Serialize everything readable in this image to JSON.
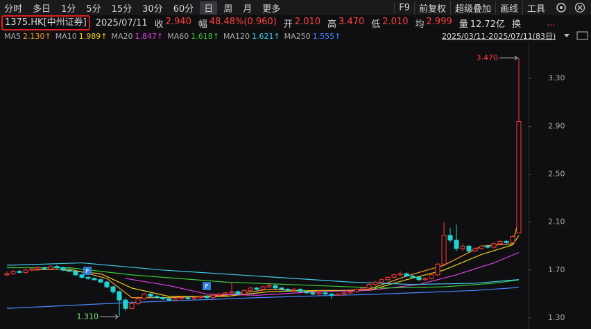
{
  "toolbar": {
    "left": [
      "分时",
      "多日",
      "1分",
      "5分",
      "15分",
      "30分",
      "60分",
      "日",
      "周",
      "月",
      "更多"
    ],
    "selected_index": 7,
    "right": [
      "F9",
      "前复权",
      "超级叠加",
      "画线",
      "工具"
    ]
  },
  "quote": {
    "symbol": "1375.HK[中州证券]",
    "date": "2025/07/11",
    "fields": [
      {
        "label": "收",
        "value": "2.940"
      },
      {
        "label": "幅",
        "value": "48.48%(0.960)"
      },
      {
        "label": "开",
        "value": "2.010"
      },
      {
        "label": "高",
        "value": "3.470"
      },
      {
        "label": "低",
        "value": "2.010"
      },
      {
        "label": "均",
        "value": "2.999"
      },
      {
        "label": "量",
        "value": "12.72亿"
      },
      {
        "label": "换",
        "value": null
      }
    ],
    "more": "..."
  },
  "chart_data": {
    "type": "candlestick",
    "date_range": "2025/03/11-2025/07/11(83日)",
    "up_color": "#ff3b3b",
    "down_color": "#22d3d3",
    "ylim": [
      1.24,
      3.59
    ],
    "yticks": [
      {
        "value": 1.3,
        "label": "1.30"
      },
      {
        "value": 1.7,
        "label": "1.70"
      },
      {
        "value": 2.1,
        "label": "2.10"
      },
      {
        "value": 2.5,
        "label": "2.50"
      },
      {
        "value": 2.9,
        "label": "2.90"
      },
      {
        "value": 3.3,
        "label": "3.30"
      }
    ],
    "candles": [
      [
        1.66,
        1.69,
        1.65,
        1.67
      ],
      [
        1.67,
        1.7,
        1.66,
        1.69
      ],
      [
        1.69,
        1.7,
        1.67,
        1.68
      ],
      [
        1.68,
        1.71,
        1.67,
        1.7
      ],
      [
        1.7,
        1.72,
        1.69,
        1.71
      ],
      [
        1.71,
        1.73,
        1.7,
        1.72
      ],
      [
        1.72,
        1.73,
        1.7,
        1.71
      ],
      [
        1.71,
        1.74,
        1.7,
        1.73
      ],
      [
        1.73,
        1.74,
        1.71,
        1.72
      ],
      [
        1.72,
        1.73,
        1.69,
        1.7
      ],
      [
        1.7,
        1.71,
        1.68,
        1.69
      ],
      [
        1.69,
        1.7,
        1.65,
        1.66
      ],
      [
        1.66,
        1.67,
        1.63,
        1.64
      ],
      [
        1.64,
        1.65,
        1.62,
        1.63
      ],
      [
        1.63,
        1.64,
        1.61,
        1.62
      ],
      [
        1.62,
        1.63,
        1.59,
        1.6
      ],
      [
        1.6,
        1.61,
        1.55,
        1.56
      ],
      [
        1.56,
        1.57,
        1.5,
        1.52
      ],
      [
        1.52,
        1.53,
        1.31,
        1.45
      ],
      [
        1.45,
        1.47,
        1.36,
        1.38
      ],
      [
        1.38,
        1.44,
        1.37,
        1.42
      ],
      [
        1.42,
        1.48,
        1.41,
        1.46
      ],
      [
        1.46,
        1.51,
        1.45,
        1.5
      ],
      [
        1.5,
        1.51,
        1.47,
        1.48
      ],
      [
        1.48,
        1.49,
        1.46,
        1.47
      ],
      [
        1.47,
        1.48,
        1.45,
        1.46
      ],
      [
        1.46,
        1.47,
        1.44,
        1.45
      ],
      [
        1.45,
        1.47,
        1.44,
        1.46
      ],
      [
        1.46,
        1.48,
        1.45,
        1.47
      ],
      [
        1.47,
        1.48,
        1.45,
        1.46
      ],
      [
        1.46,
        1.48,
        1.45,
        1.47
      ],
      [
        1.47,
        1.49,
        1.46,
        1.48
      ],
      [
        1.48,
        1.49,
        1.46,
        1.47
      ],
      [
        1.47,
        1.5,
        1.46,
        1.49
      ],
      [
        1.49,
        1.51,
        1.48,
        1.5
      ],
      [
        1.5,
        1.52,
        1.49,
        1.51
      ],
      [
        1.51,
        1.6,
        1.5,
        1.52
      ],
      [
        1.52,
        1.53,
        1.49,
        1.5
      ],
      [
        1.5,
        1.54,
        1.49,
        1.53
      ],
      [
        1.53,
        1.56,
        1.52,
        1.55
      ],
      [
        1.55,
        1.56,
        1.53,
        1.54
      ],
      [
        1.54,
        1.57,
        1.53,
        1.56
      ],
      [
        1.56,
        1.59,
        1.55,
        1.57
      ],
      [
        1.57,
        1.58,
        1.54,
        1.55
      ],
      [
        1.55,
        1.56,
        1.53,
        1.54
      ],
      [
        1.54,
        1.55,
        1.52,
        1.53
      ],
      [
        1.53,
        1.55,
        1.52,
        1.54
      ],
      [
        1.54,
        1.55,
        1.51,
        1.52
      ],
      [
        1.52,
        1.53,
        1.5,
        1.51
      ],
      [
        1.51,
        1.52,
        1.49,
        1.5
      ],
      [
        1.5,
        1.52,
        1.49,
        1.51
      ],
      [
        1.51,
        1.52,
        1.49,
        1.5
      ],
      [
        1.5,
        1.51,
        1.46,
        1.49
      ],
      [
        1.49,
        1.51,
        1.48,
        1.5
      ],
      [
        1.5,
        1.52,
        1.49,
        1.51
      ],
      [
        1.51,
        1.53,
        1.5,
        1.52
      ],
      [
        1.52,
        1.55,
        1.51,
        1.54
      ],
      [
        1.54,
        1.56,
        1.53,
        1.55
      ],
      [
        1.55,
        1.59,
        1.54,
        1.58
      ],
      [
        1.58,
        1.61,
        1.57,
        1.6
      ],
      [
        1.6,
        1.63,
        1.59,
        1.62
      ],
      [
        1.62,
        1.65,
        1.61,
        1.64
      ],
      [
        1.64,
        1.67,
        1.63,
        1.66
      ],
      [
        1.66,
        1.69,
        1.65,
        1.67
      ],
      [
        1.67,
        1.68,
        1.64,
        1.65
      ],
      [
        1.65,
        1.66,
        1.63,
        1.64
      ],
      [
        1.64,
        1.65,
        1.61,
        1.62
      ],
      [
        1.62,
        1.64,
        1.61,
        1.63
      ],
      [
        1.63,
        1.67,
        1.62,
        1.66
      ],
      [
        1.66,
        1.76,
        1.65,
        1.75
      ],
      [
        1.75,
        2.1,
        1.74,
        1.99
      ],
      [
        1.99,
        2.05,
        1.93,
        1.95
      ],
      [
        1.95,
        2.08,
        1.86,
        1.88
      ],
      [
        1.88,
        1.92,
        1.86,
        1.9
      ],
      [
        1.9,
        1.91,
        1.85,
        1.86
      ],
      [
        1.86,
        1.89,
        1.85,
        1.88
      ],
      [
        1.88,
        1.91,
        1.87,
        1.9
      ],
      [
        1.9,
        1.91,
        1.88,
        1.89
      ],
      [
        1.89,
        1.93,
        1.88,
        1.92
      ],
      [
        1.92,
        1.95,
        1.91,
        1.94
      ],
      [
        1.94,
        1.95,
        1.92,
        1.93
      ],
      [
        1.93,
        1.99,
        1.92,
        1.98
      ],
      [
        2.01,
        3.47,
        2.01,
        2.94
      ]
    ],
    "ma_lines": [
      {
        "name": "MA5",
        "color": "#f5a030",
        "value_label": "2.130↑",
        "x": [
          4,
          10,
          16,
          20,
          26,
          35,
          42,
          50,
          58,
          64,
          70,
          76,
          81,
          82
        ],
        "values": [
          1.7,
          1.71,
          1.63,
          1.47,
          1.47,
          1.49,
          1.54,
          1.52,
          1.54,
          1.65,
          1.74,
          1.9,
          1.92,
          2.13
        ]
      },
      {
        "name": "MA10",
        "color": "#e8d020",
        "value_label": "1.989↑",
        "x": [
          9,
          15,
          20,
          26,
          35,
          42,
          50,
          58,
          64,
          70,
          76,
          81,
          82
        ],
        "values": [
          1.7,
          1.67,
          1.55,
          1.48,
          1.48,
          1.52,
          1.53,
          1.53,
          1.62,
          1.7,
          1.83,
          1.91,
          1.989
        ]
      },
      {
        "name": "MA20",
        "color": "#e040e0",
        "value_label": "1.847↑",
        "x": [
          19,
          26,
          32,
          40,
          50,
          58,
          66,
          72,
          78,
          82
        ],
        "values": [
          1.63,
          1.57,
          1.5,
          1.49,
          1.52,
          1.53,
          1.58,
          1.66,
          1.76,
          1.847
        ]
      },
      {
        "name": "MA60",
        "color": "#3cc83c",
        "value_label": "1.618↑",
        "x": [
          0,
          10,
          20,
          35,
          50,
          60,
          70,
          78,
          82
        ],
        "values": [
          1.72,
          1.72,
          1.66,
          1.6,
          1.57,
          1.55,
          1.56,
          1.59,
          1.618
        ]
      },
      {
        "name": "MA120",
        "color": "#40c8e8",
        "value_label": "1.621↑",
        "x": [
          0,
          12,
          25,
          40,
          55,
          65,
          75,
          82
        ],
        "values": [
          1.74,
          1.76,
          1.7,
          1.65,
          1.6,
          1.58,
          1.59,
          1.621
        ]
      },
      {
        "name": "MA250",
        "color": "#4a86ff",
        "value_label": "1.555↑",
        "x": [
          0,
          20,
          40,
          60,
          75,
          82
        ],
        "values": [
          1.38,
          1.43,
          1.47,
          1.5,
          1.53,
          1.555
        ]
      }
    ],
    "annotations": [
      {
        "label": "3.470",
        "value": 3.47,
        "color": "#ff3b3b"
      },
      {
        "label": "1.310",
        "value": 1.31,
        "color": "#7fe07f"
      }
    ],
    "event_marker_label": "F"
  }
}
